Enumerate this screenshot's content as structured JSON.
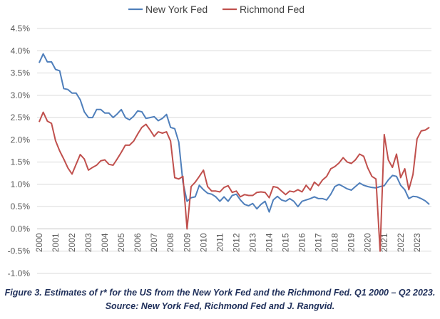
{
  "chart_data": {
    "type": "line",
    "title": "",
    "xlabel": "",
    "ylabel": "",
    "ylim": [
      -0.01,
      0.045
    ],
    "yticks": [
      "4.5%",
      "4.0%",
      "3.5%",
      "3.0%",
      "2.5%",
      "2.0%",
      "1.5%",
      "1.0%",
      "0.5%",
      "0.0%",
      "-0.5%",
      "-1.0%"
    ],
    "xticks": [
      "2000",
      "2001",
      "2002",
      "2003",
      "2004",
      "2005",
      "2006",
      "2007",
      "2008",
      "2009",
      "2010",
      "2011",
      "2012",
      "2013",
      "2014",
      "2015",
      "2016",
      "2017",
      "2018",
      "2019",
      "2020",
      "2021",
      "2022",
      "2023"
    ],
    "x_start": "2000 Q1",
    "x_end": "2023 Q2",
    "legend_position": "top",
    "grid": true,
    "series": [
      {
        "name": "New York Fed",
        "color": "#4f7fbb",
        "values": [
          0.0373,
          0.0393,
          0.0375,
          0.0375,
          0.0358,
          0.0355,
          0.0315,
          0.0313,
          0.0305,
          0.0305,
          0.029,
          0.0263,
          0.025,
          0.025,
          0.0268,
          0.0268,
          0.026,
          0.026,
          0.025,
          0.0258,
          0.0268,
          0.025,
          0.0245,
          0.0253,
          0.0265,
          0.0263,
          0.0248,
          0.025,
          0.0252,
          0.0243,
          0.0248,
          0.0257,
          0.0228,
          0.0225,
          0.0195,
          0.0105,
          0.0062,
          0.007,
          0.0072,
          0.0098,
          0.0088,
          0.008,
          0.0078,
          0.0072,
          0.0062,
          0.0072,
          0.0062,
          0.0075,
          0.0078,
          0.0065,
          0.0055,
          0.0052,
          0.0057,
          0.0045,
          0.0055,
          0.0062,
          0.0038,
          0.0065,
          0.0073,
          0.0065,
          0.0062,
          0.0068,
          0.0062,
          0.005,
          0.0062,
          0.0065,
          0.0068,
          0.0072,
          0.0068,
          0.0068,
          0.0065,
          0.0078,
          0.0095,
          0.01,
          0.0095,
          0.009,
          0.0087,
          0.0095,
          0.0103,
          0.0098,
          0.0095,
          0.0093,
          0.0092,
          0.0095,
          0.0097,
          0.011,
          0.012,
          0.0118,
          0.0098,
          0.0088,
          0.0068,
          0.0073,
          0.0072,
          0.0068,
          0.0063,
          0.0055
        ]
      },
      {
        "name": "Richmond Fed",
        "color": "#c0504d",
        "values": [
          0.024,
          0.0262,
          0.0242,
          0.0237,
          0.0198,
          0.0175,
          0.0157,
          0.0137,
          0.0123,
          0.0145,
          0.0167,
          0.0157,
          0.0132,
          0.0138,
          0.0143,
          0.0153,
          0.0155,
          0.0145,
          0.0143,
          0.0157,
          0.0172,
          0.0188,
          0.0188,
          0.0197,
          0.0213,
          0.0228,
          0.0235,
          0.0222,
          0.0208,
          0.0218,
          0.0215,
          0.0218,
          0.0197,
          0.0115,
          0.0112,
          0.0118,
          0.0,
          0.0095,
          0.0105,
          0.0118,
          0.0132,
          0.0095,
          0.0085,
          0.0085,
          0.0083,
          0.0093,
          0.0097,
          0.0082,
          0.0085,
          0.0072,
          0.0077,
          0.0075,
          0.0075,
          0.0082,
          0.0083,
          0.0082,
          0.007,
          0.0095,
          0.0093,
          0.0085,
          0.0077,
          0.0085,
          0.0083,
          0.0088,
          0.0083,
          0.0098,
          0.0087,
          0.0105,
          0.0097,
          0.011,
          0.0118,
          0.0135,
          0.014,
          0.0148,
          0.016,
          0.015,
          0.0147,
          0.0155,
          0.0168,
          0.0163,
          0.0137,
          0.0118,
          0.0112,
          -0.005,
          0.0212,
          0.0155,
          0.0138,
          0.0168,
          0.0115,
          0.0135,
          0.0088,
          0.0122,
          0.0202,
          0.022,
          0.0222,
          0.0228
        ]
      }
    ]
  },
  "caption": {
    "line1": "Figure 3. Estimates of r* for the US from the New York Fed and the Richmond Fed. Q1 2000 – Q2 2023.",
    "line2": "Source: New York Fed, Richmond Fed and J. Rangvid."
  }
}
